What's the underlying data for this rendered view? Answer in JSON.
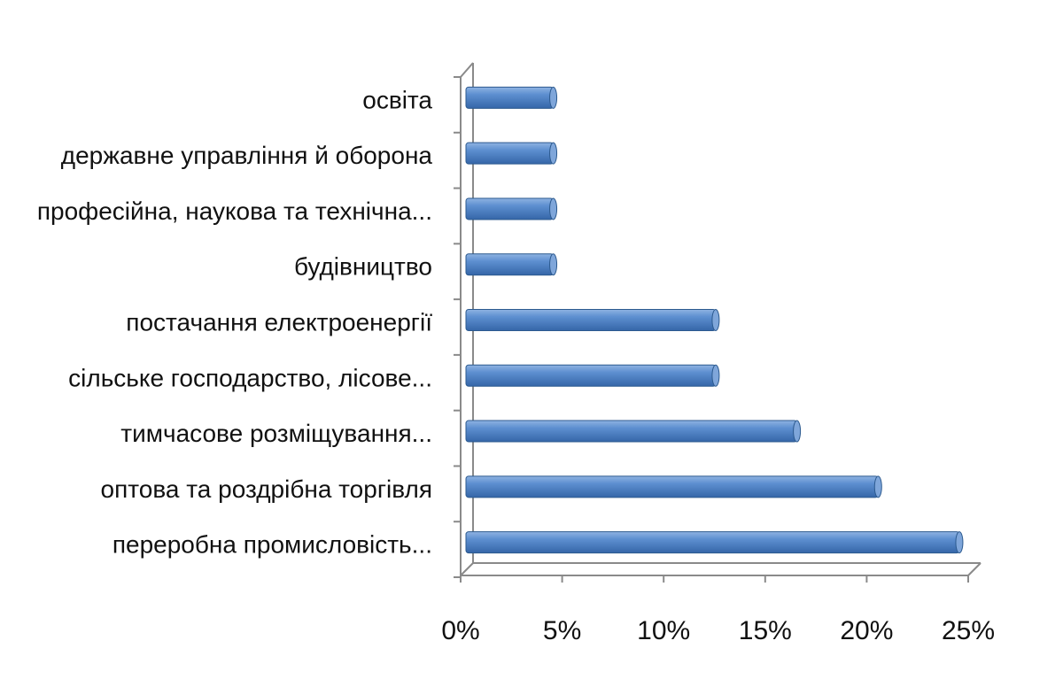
{
  "chart_data": {
    "type": "bar",
    "orientation": "horizontal",
    "categories": [
      "освіта",
      "державне управління й оборона",
      "професійна, наукова та технічна...",
      "будівництво",
      "постачання електроенергії",
      "сільське господарство, лісове...",
      "тимчасове розміщування...",
      "оптова та роздрібна торгівля",
      "переробна промисловість..."
    ],
    "values": [
      4.3,
      4.3,
      4.3,
      4.3,
      12.3,
      12.3,
      16.3,
      20.3,
      24.3
    ],
    "x_ticks": [
      "0%",
      "5%",
      "10%",
      "15%",
      "20%",
      "25%"
    ],
    "xlim": [
      0,
      25
    ],
    "bar_color": "#4A7EBB",
    "bar_edge_color": "#2C5A8F",
    "title": "",
    "xlabel": "",
    "ylabel": "",
    "grid": false,
    "legend": "none",
    "style": "3d"
  }
}
